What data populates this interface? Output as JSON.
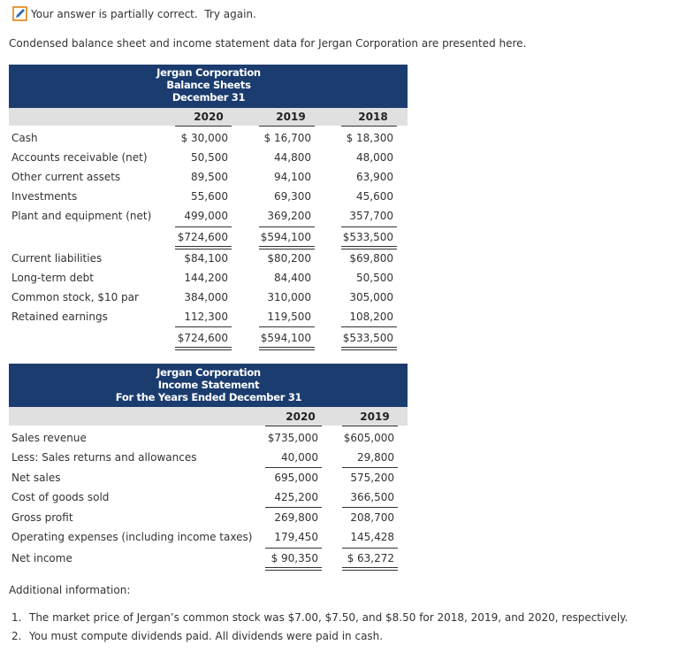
{
  "feedback": "Your answer is partially correct.  Try again.",
  "intro": "Condensed balance sheet and income statement data for Jergan Corporation are presented here.",
  "balance_sheet": {
    "title": [
      "Jergan Corporation",
      "Balance Sheets",
      "December 31"
    ],
    "columns": [
      "2020",
      "2019",
      "2018"
    ],
    "assets": [
      {
        "label": "Cash",
        "values": [
          "$ 30,000",
          "$ 16,700",
          "$ 18,300"
        ]
      },
      {
        "label": "Accounts receivable (net)",
        "values": [
          "50,500",
          "44,800",
          "48,000"
        ]
      },
      {
        "label": "Other current assets",
        "values": [
          "89,500",
          "94,100",
          "63,900"
        ]
      },
      {
        "label": "Investments",
        "values": [
          "55,600",
          "69,300",
          "45,600"
        ]
      },
      {
        "label": "Plant and equipment (net)",
        "values": [
          "499,000",
          "369,200",
          "357,700"
        ]
      }
    ],
    "total_assets": [
      "$724,600",
      "$594,100",
      "$533,500"
    ],
    "liabilities_equity": [
      {
        "label": "Current liabilities",
        "values": [
          "$84,100",
          "$80,200",
          "$69,800"
        ]
      },
      {
        "label": "Long-term debt",
        "values": [
          "144,200",
          "84,400",
          "50,500"
        ]
      },
      {
        "label": "Common stock, $10 par",
        "values": [
          "384,000",
          "310,000",
          "305,000"
        ]
      },
      {
        "label": "Retained earnings",
        "values": [
          "112,300",
          "119,500",
          "108,200"
        ]
      }
    ],
    "total_liabilities_equity": [
      "$724,600",
      "$594,100",
      "$533,500"
    ]
  },
  "income_statement": {
    "title": [
      "Jergan Corporation",
      "Income Statement",
      "For the Years Ended December 31"
    ],
    "columns": [
      "2020",
      "2019"
    ],
    "rows": [
      {
        "label": "Sales revenue",
        "values": [
          "$735,000",
          "$605,000"
        ]
      },
      {
        "label": "Less: Sales returns and allowances",
        "values": [
          "40,000",
          "29,800"
        ]
      },
      {
        "label": "Net sales",
        "values": [
          "695,000",
          "575,200"
        ]
      },
      {
        "label": "Cost of goods sold",
        "values": [
          "425,200",
          "366,500"
        ]
      },
      {
        "label": "Gross profit",
        "values": [
          "269,800",
          "208,700"
        ]
      },
      {
        "label": "Operating expenses (including income taxes)",
        "values": [
          "179,450",
          "145,428"
        ]
      },
      {
        "label": "Net income",
        "values": [
          "$ 90,350",
          "$ 63,272"
        ]
      }
    ]
  },
  "additional": {
    "heading": "Additional information:",
    "items": [
      {
        "number": "1.",
        "text": "The market price of Jergan’s common stock was $7.00, $7.50, and $8.50 for 2018, 2019, and 2020, respectively."
      },
      {
        "number": "2.",
        "text": "You must compute dividends paid. All dividends were paid in cash."
      }
    ]
  }
}
